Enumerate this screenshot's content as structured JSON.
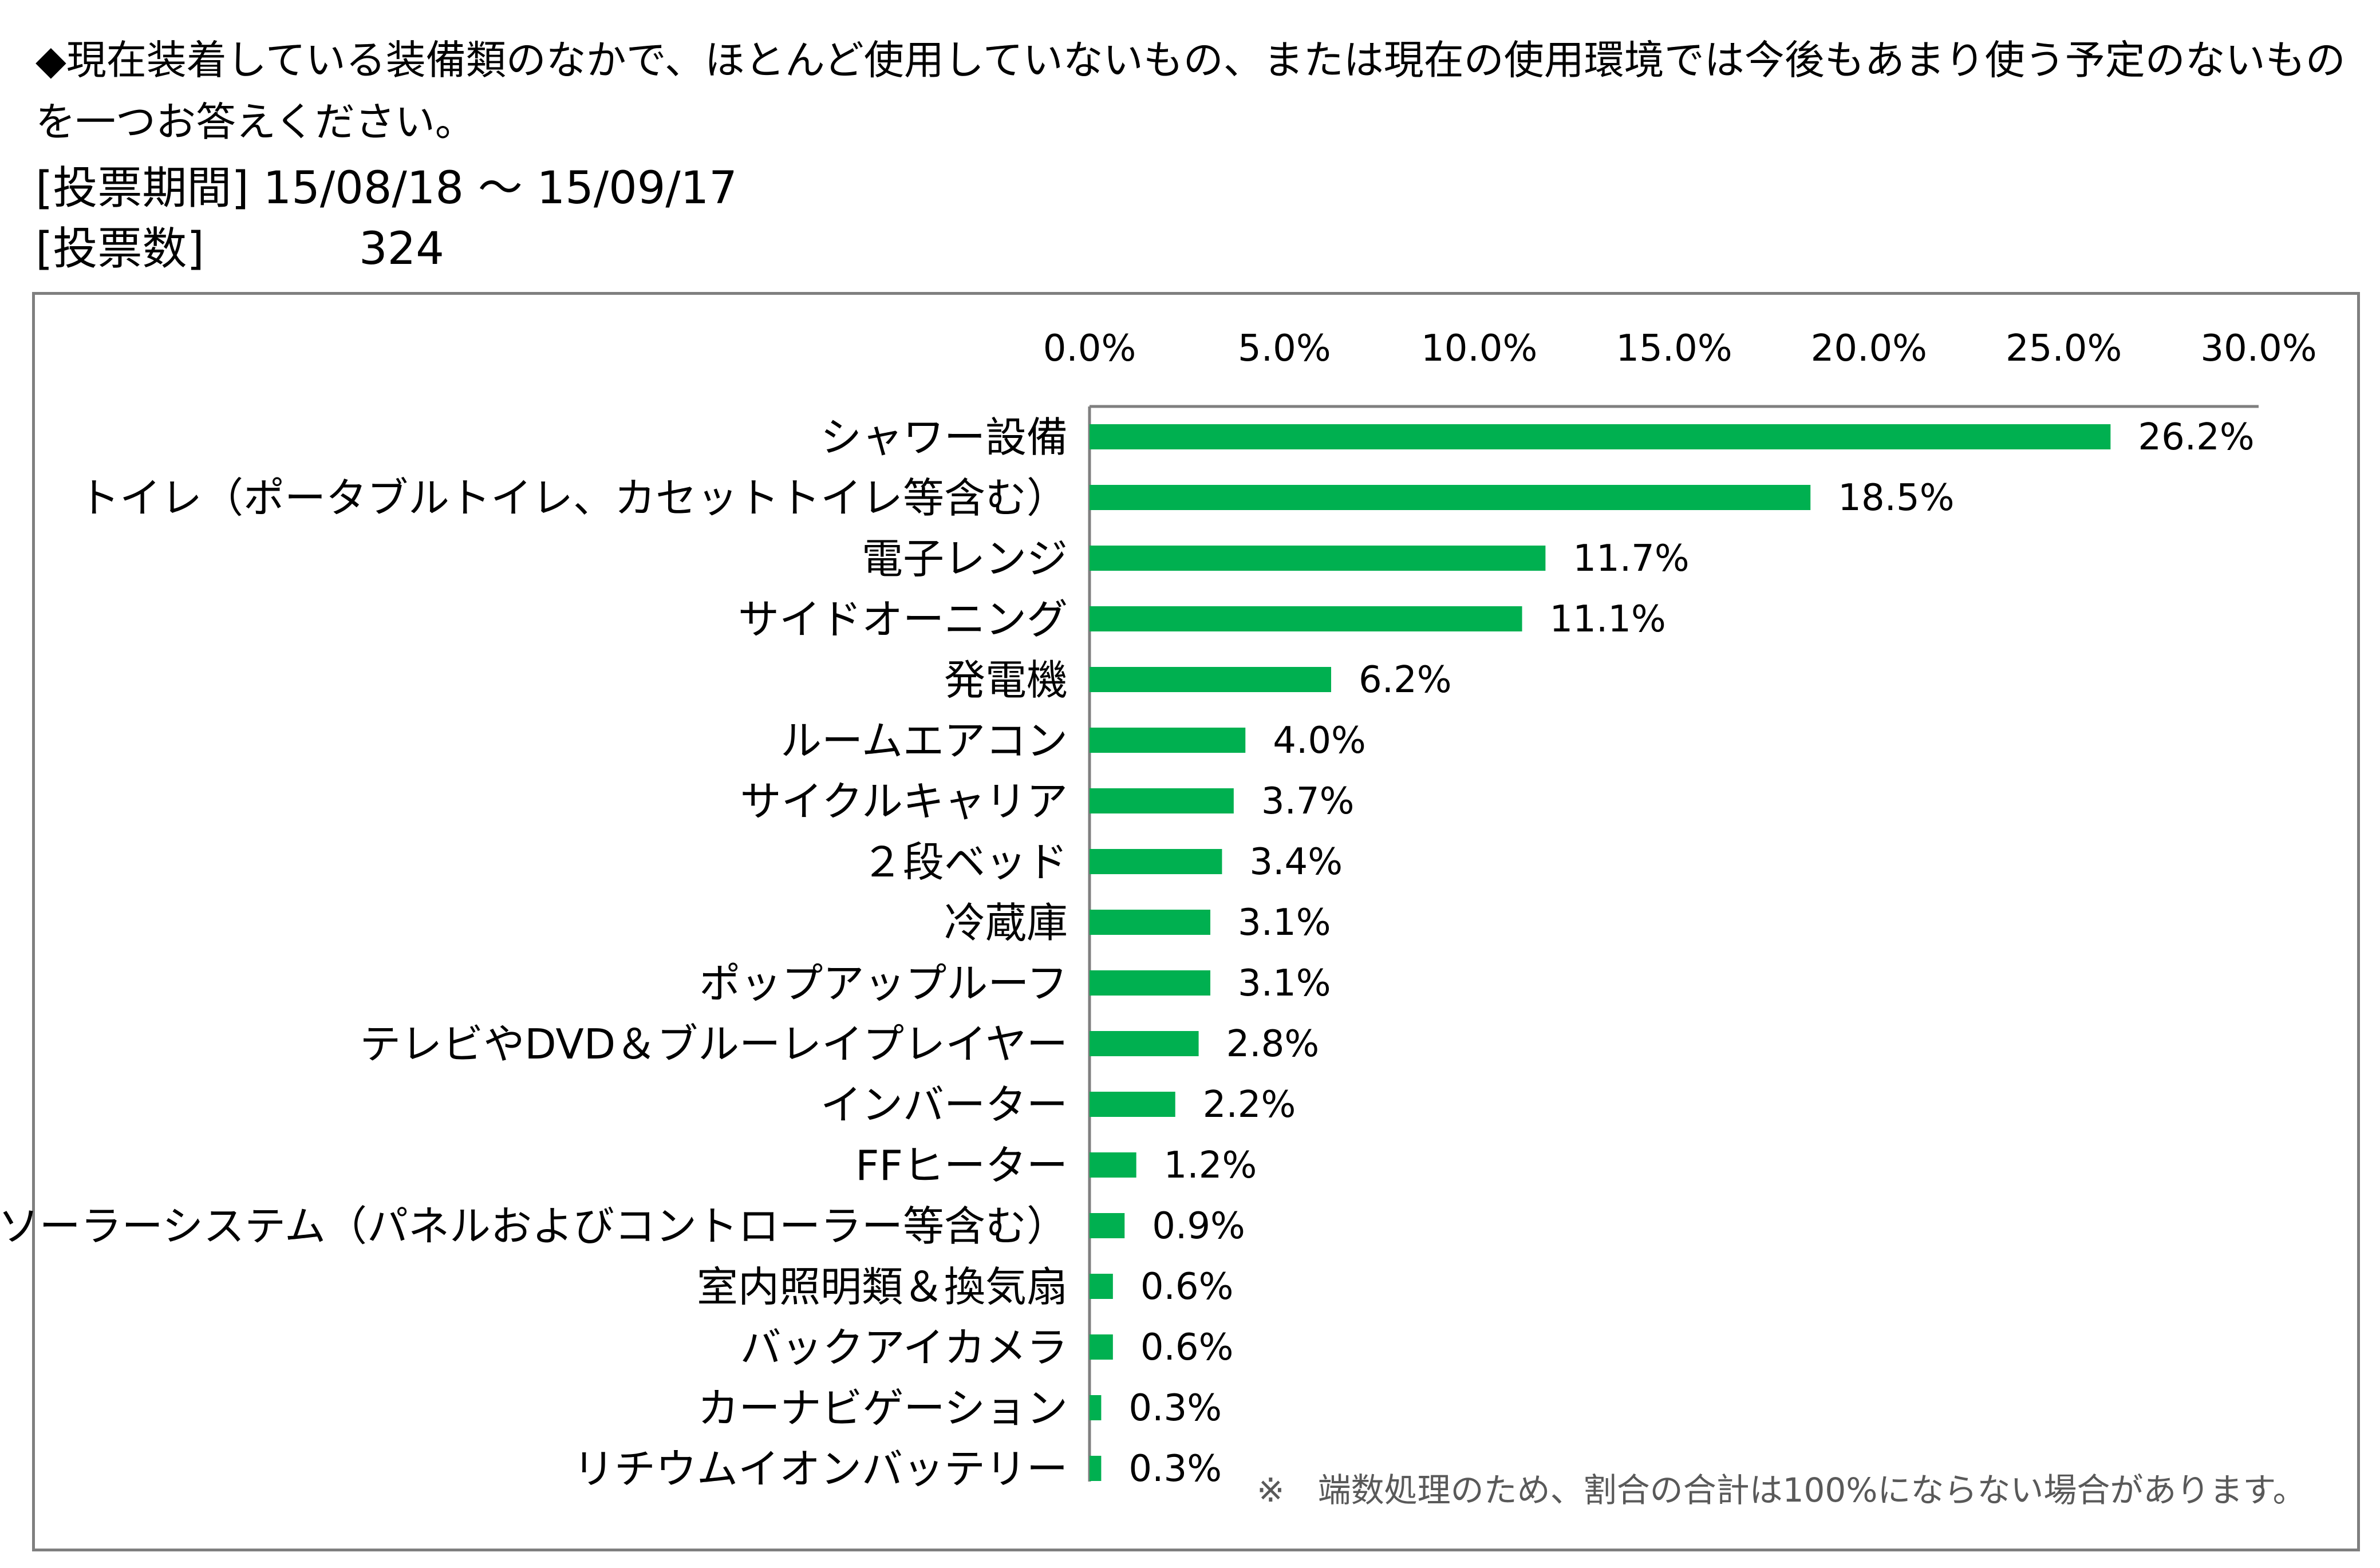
{
  "header": {
    "question_line1": "◆現在装着している装備類のなかで、ほとんど使用していないもの、または現在の使用環境では今後もあまり使う予定のないもの",
    "question_line2": "を一つお答えください。",
    "period_label": "[投票期間]",
    "period_value": "15/08/18 〜 15/09/17",
    "votes_label": "[投票数]",
    "votes_value": "324"
  },
  "colors": {
    "bar": "#00b050",
    "axis": "#7f7f7f",
    "frame": "#7f7f7f"
  },
  "footnote": "※　端数処理のため、割合の合計は100%にならない場合があります。",
  "chart_data": {
    "type": "bar",
    "orientation": "horizontal",
    "xlim": [
      0,
      30
    ],
    "ticks": [
      0,
      5,
      10,
      15,
      20,
      25,
      30
    ],
    "tick_labels": [
      "0.0%",
      "5.0%",
      "10.0%",
      "15.0%",
      "20.0%",
      "25.0%",
      "30.0%"
    ],
    "axis_position": "top",
    "grid": false,
    "categories": [
      "シャワー設備",
      "トイレ（ポータブルトイレ、カセットトイレ等含む）",
      "電子レンジ",
      "サイドオーニング",
      "発電機",
      "ルームエアコン",
      "サイクルキャリア",
      "２段ベッド",
      "冷蔵庫",
      "ポップアップルーフ",
      "テレビやDVD＆ブルーレイプレイヤー",
      "インバーター",
      "FFヒーター",
      "ソーラーシステム（パネルおよびコントローラー等含む）",
      "室内照明類＆換気扇",
      "バックアイカメラ",
      "カーナビゲーション",
      "リチウムイオンバッテリー"
    ],
    "values": [
      26.2,
      18.5,
      11.7,
      11.1,
      6.2,
      4.0,
      3.7,
      3.4,
      3.1,
      3.1,
      2.8,
      2.2,
      1.2,
      0.9,
      0.6,
      0.6,
      0.3,
      0.3
    ],
    "value_labels": [
      "26.2%",
      "18.5%",
      "11.7%",
      "11.1%",
      "6.2%",
      "4.0%",
      "3.7%",
      "3.4%",
      "3.1%",
      "3.1%",
      "2.8%",
      "2.2%",
      "1.2%",
      "0.9%",
      "0.6%",
      "0.6%",
      "0.3%",
      "0.3%"
    ]
  }
}
